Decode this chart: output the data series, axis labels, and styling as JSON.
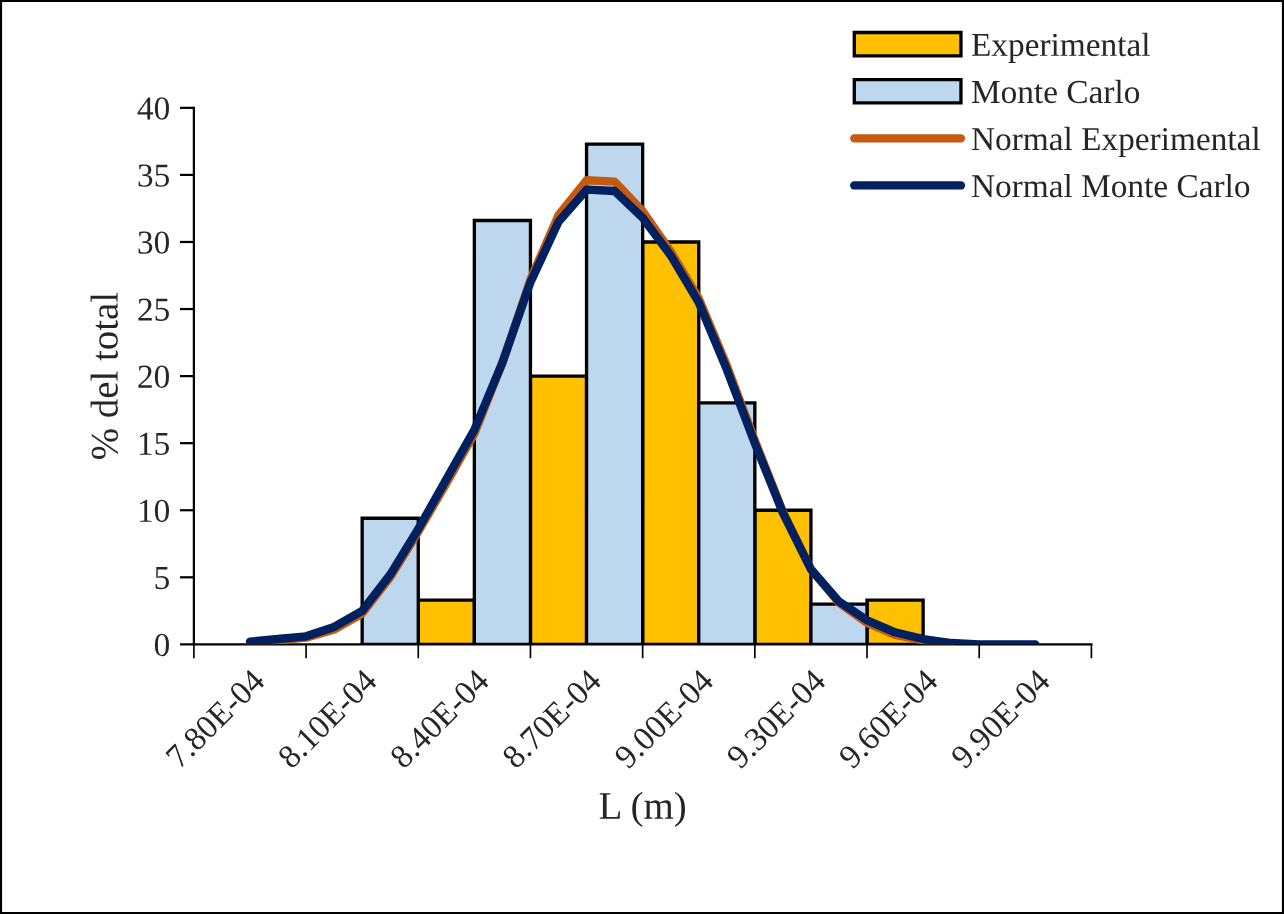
{
  "chart_data": {
    "type": "bar",
    "xlabel": "L (m)",
    "ylabel": "% del total",
    "x": [
      0.00081,
      0.00084,
      0.00087,
      0.0009,
      0.00093,
      0.00096
    ],
    "series": [
      {
        "name": "Experimental",
        "color": "#ffc000",
        "values": [
          null,
          3.3,
          20,
          30,
          10,
          3.3
        ]
      },
      {
        "name": "Monte Carlo",
        "color": "#bdd7ee",
        "values": [
          9.4,
          31.6,
          37.3,
          18,
          3,
          null
        ]
      },
      {
        "name": "Normal Experimental",
        "type": "line",
        "color": "#c55a11",
        "x": [
          0.00078,
          0.0007875,
          0.000795,
          0.0008025,
          0.00081,
          0.0008175,
          0.000825,
          0.0008325,
          0.00084,
          0.0008475,
          0.000855,
          0.0008625,
          0.00087,
          0.0008775,
          0.000885,
          0.0008925,
          0.0009,
          0.0009075,
          0.000915,
          0.0009225,
          0.00093,
          0.0009375,
          0.000945,
          0.0009525,
          0.00096,
          0.0009675
        ],
        "values": [
          0.1,
          0.3,
          0.5,
          1.1,
          2.3,
          5,
          8.4,
          12,
          15.7,
          21,
          27.2,
          32,
          34.6,
          34.5,
          32.3,
          29.3,
          25.8,
          20.8,
          15.2,
          9.9,
          5.6,
          3.1,
          1.6,
          0.7,
          0.3,
          0.1
        ]
      },
      {
        "name": "Normal Monte Carlo",
        "type": "line",
        "color": "#002060",
        "x": [
          0.00078,
          0.0007875,
          0.000795,
          0.0008025,
          0.00081,
          0.0008175,
          0.000825,
          0.0008325,
          0.00084,
          0.0008475,
          0.000855,
          0.0008625,
          0.00087,
          0.0008775,
          0.000885,
          0.0008925,
          0.0009,
          0.0009075,
          0.000915,
          0.0009225,
          0.00093,
          0.0009375,
          0.000945,
          0.0009525,
          0.00096,
          0.0009675,
          0.000975,
          0.0009825,
          0.00099
        ],
        "values": [
          0.2,
          0.4,
          0.6,
          1.3,
          2.5,
          5.2,
          8.6,
          12.3,
          16,
          21,
          27,
          31.5,
          33.9,
          33.8,
          31.8,
          29,
          25.5,
          20.5,
          15,
          9.8,
          5.6,
          3.2,
          1.8,
          0.9,
          0.4,
          0.1,
          0,
          0,
          0
        ]
      }
    ],
    "xlim": [
      0.000765,
      0.001005
    ],
    "xticks": [
      {
        "value": 0.000765,
        "label": null
      },
      {
        "value": 0.00078,
        "label": "7.80E-04"
      },
      {
        "value": 0.000795,
        "label": null
      },
      {
        "value": 0.00081,
        "label": "8.10E-04"
      },
      {
        "value": 0.000825,
        "label": null
      },
      {
        "value": 0.00084,
        "label": "8.40E-04"
      },
      {
        "value": 0.000855,
        "label": null
      },
      {
        "value": 0.00087,
        "label": "8.70E-04"
      },
      {
        "value": 0.000885,
        "label": null
      },
      {
        "value": 0.0009,
        "label": "9.00E-04"
      },
      {
        "value": 0.000915,
        "label": null
      },
      {
        "value": 0.00093,
        "label": "9.30E-04"
      },
      {
        "value": 0.000945,
        "label": null
      },
      {
        "value": 0.00096,
        "label": "9.60E-04"
      },
      {
        "value": 0.000975,
        "label": null
      },
      {
        "value": 0.00099,
        "label": "9.90E-04"
      },
      {
        "value": 0.001005,
        "label": null
      }
    ],
    "ylim": [
      0,
      40
    ],
    "yticks": [
      0,
      5,
      10,
      15,
      20,
      25,
      30,
      35,
      40
    ],
    "grid": false,
    "legend": "top right"
  }
}
